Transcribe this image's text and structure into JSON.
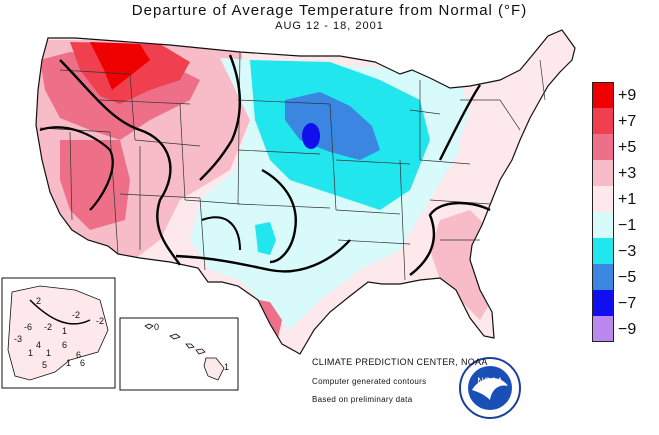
{
  "map": {
    "title": "Departure of Average Temperature from Normal (°F)",
    "subtitle": "AUG 12 - 18, 2001",
    "region": "Contiguous United States",
    "insets": [
      "Alaska",
      "Hawaii"
    ]
  },
  "legend": {
    "items": [
      {
        "label": "+9",
        "color": "#ee0000"
      },
      {
        "label": "+7",
        "color": "#f04050"
      },
      {
        "label": "+5",
        "color": "#ee7088"
      },
      {
        "label": "+3",
        "color": "#f7bcc8"
      },
      {
        "label": "+1",
        "color": "#fde8ec"
      },
      {
        "label": "−1",
        "color": "#d9fafa"
      },
      {
        "label": "−3",
        "color": "#22e6ee"
      },
      {
        "label": "−5",
        "color": "#3a86e0"
      },
      {
        "label": "−7",
        "color": "#1010ee"
      },
      {
        "label": "−9",
        "color": "#bb88ee"
      }
    ]
  },
  "credits": {
    "center": "CLIMATE PREDICTION CENTER, NOAA",
    "line2": "Computer generated contours",
    "line3": "Based on preliminary data",
    "logo_text": "NOAA"
  },
  "inset_labels": {
    "alaska": [
      "2",
      "-2",
      "-2",
      "-6",
      "-2",
      "1",
      "-3",
      "4",
      "1",
      "1",
      "6",
      "6",
      "1",
      "5",
      "6"
    ],
    "hawaii": [
      "0",
      "1"
    ]
  }
}
